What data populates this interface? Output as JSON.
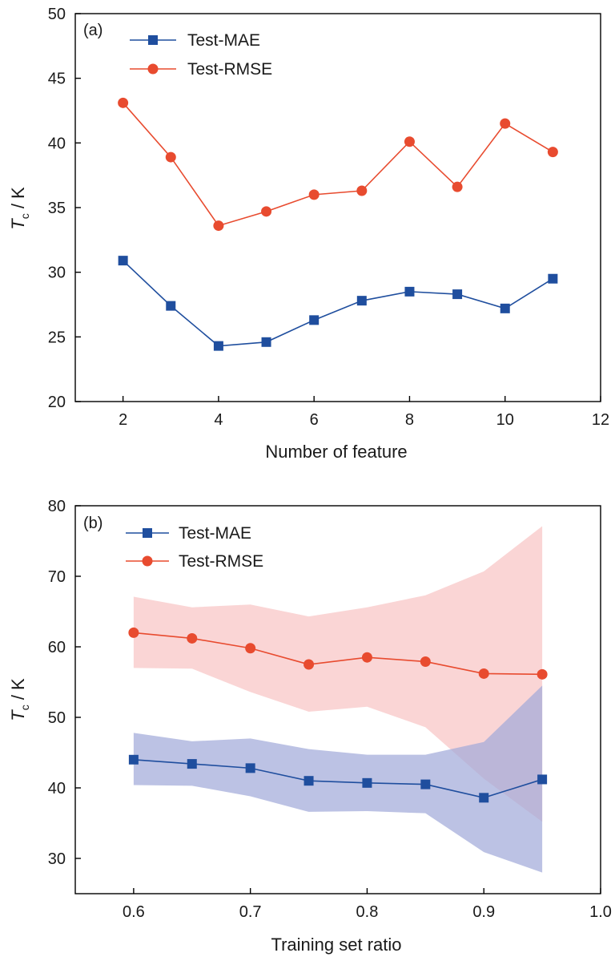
{
  "colors": {
    "mae": "#1f4e9e",
    "rmse": "#e84b2f",
    "mae_band": "#9fa8d8",
    "rmse_band": "#f6b9b9"
  },
  "chart_data": [
    {
      "type": "line",
      "panel_tag": "(a)",
      "xlabel": "Number of feature",
      "ylabel_main": "T",
      "ylabel_sub": "c",
      "ylabel_tail": " / K",
      "xlim": [
        1,
        12
      ],
      "ylim": [
        20,
        50
      ],
      "xticks": [
        2,
        4,
        6,
        8,
        10,
        12
      ],
      "yticks": [
        20,
        25,
        30,
        35,
        40,
        45,
        50
      ],
      "xtick_labels": [
        "2",
        "4",
        "6",
        "8",
        "10",
        "12"
      ],
      "ytick_labels": [
        "20",
        "25",
        "30",
        "35",
        "40",
        "45",
        "50"
      ],
      "legend_position": "top-left",
      "x": [
        2,
        3,
        4,
        5,
        6,
        7,
        8,
        9,
        10,
        11
      ],
      "series": [
        {
          "name": "Test-MAE",
          "marker": "square",
          "color_key": "mae",
          "values": [
            30.9,
            27.4,
            24.3,
            24.6,
            26.3,
            27.8,
            28.5,
            28.3,
            27.2,
            29.5
          ]
        },
        {
          "name": "Test-RMSE",
          "marker": "circle",
          "color_key": "rmse",
          "values": [
            43.1,
            38.9,
            33.6,
            34.7,
            36.0,
            36.3,
            40.1,
            36.6,
            41.5,
            39.3
          ]
        }
      ]
    },
    {
      "type": "line",
      "panel_tag": "(b)",
      "xlabel": "Training set ratio",
      "ylabel_main": "T",
      "ylabel_sub": "c",
      "ylabel_tail": " / K",
      "xlim": [
        0.55,
        1.0
      ],
      "ylim": [
        25,
        80
      ],
      "xticks": [
        0.6,
        0.7,
        0.8,
        0.9,
        1.0
      ],
      "yticks": [
        30,
        40,
        50,
        60,
        70,
        80
      ],
      "xtick_labels": [
        "0.6",
        "0.7",
        "0.8",
        "0.9",
        "1.0"
      ],
      "ytick_labels": [
        "30",
        "40",
        "50",
        "60",
        "70",
        "80"
      ],
      "legend_position": "top-left",
      "x": [
        0.6,
        0.65,
        0.7,
        0.75,
        0.8,
        0.85,
        0.9,
        0.95
      ],
      "series": [
        {
          "name": "Test-MAE",
          "marker": "square",
          "color_key": "mae",
          "band_color_key": "mae_band",
          "values": [
            44.0,
            43.4,
            42.8,
            41.0,
            40.7,
            40.5,
            38.6,
            41.2
          ],
          "upper": [
            47.8,
            46.6,
            47.0,
            45.5,
            44.7,
            44.7,
            46.5,
            54.5
          ],
          "lower": [
            40.4,
            40.3,
            38.8,
            36.6,
            36.7,
            36.4,
            30.9,
            28.0
          ]
        },
        {
          "name": "Test-RMSE",
          "marker": "circle",
          "color_key": "rmse",
          "band_color_key": "rmse_band",
          "values": [
            62.0,
            61.2,
            59.8,
            57.5,
            58.5,
            57.9,
            56.2,
            56.1
          ],
          "upper": [
            67.1,
            65.6,
            66.0,
            64.3,
            65.6,
            67.3,
            70.7,
            77.1
          ],
          "lower": [
            57.0,
            56.9,
            53.6,
            50.8,
            51.5,
            48.6,
            41.3,
            35.2
          ]
        }
      ]
    }
  ]
}
